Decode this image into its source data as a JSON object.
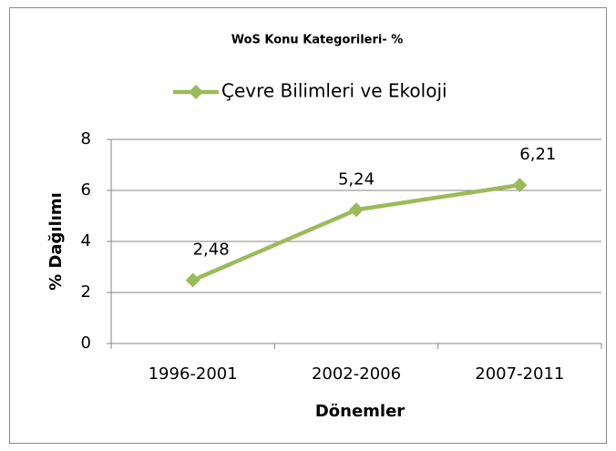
{
  "chart_data": {
    "type": "line",
    "title": "WoS Konu Kategorileri- %",
    "categories": [
      "1996-2001",
      "2002-2006",
      "2007-2011"
    ],
    "series": [
      {
        "name": "Çevre Bilimleri ve Ekoloji",
        "color": "#9bbb59",
        "values": [
          2.48,
          5.24,
          6.21
        ],
        "value_labels": [
          "2,48",
          "5,24",
          "6,21"
        ]
      }
    ],
    "xlabel": "Dönemler",
    "ylabel": "% Dağılımı",
    "ylim": [
      0,
      8
    ],
    "yticks": [
      0,
      2,
      4,
      6,
      8
    ],
    "grid": true,
    "legend": "top"
  }
}
